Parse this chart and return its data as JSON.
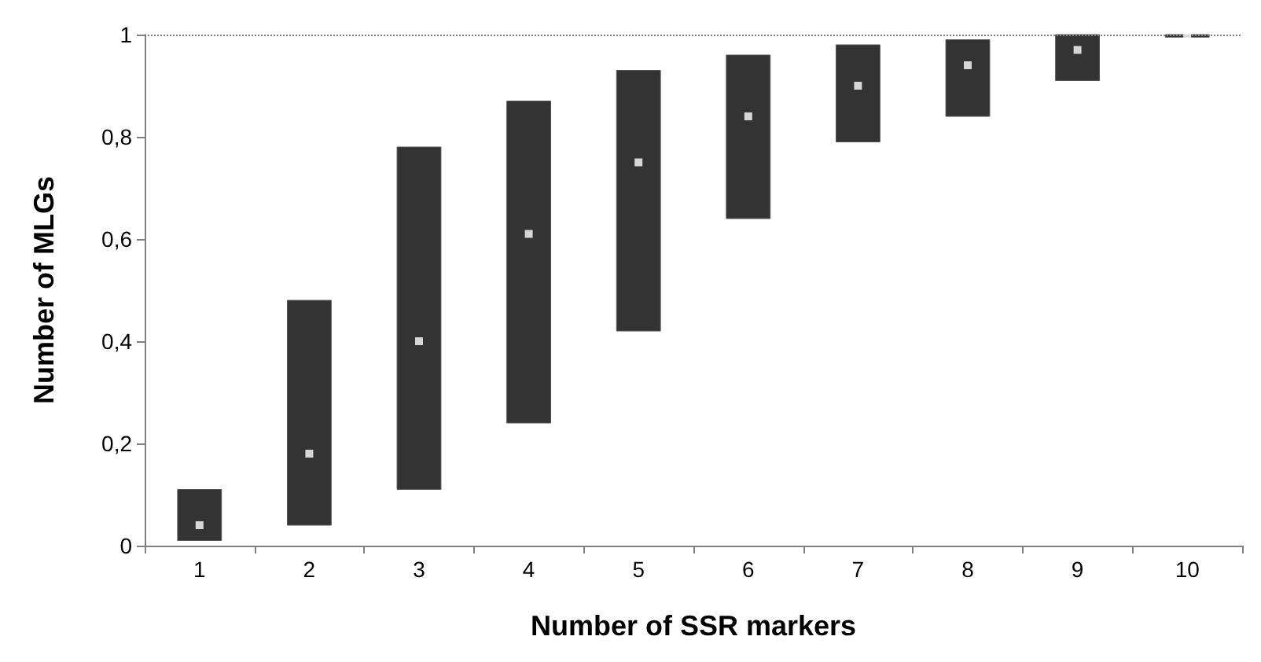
{
  "chart_data": {
    "type": "bar",
    "xlabel": "Number of SSR markers",
    "ylabel": "Number of MLGs",
    "categories": [
      "1",
      "2",
      "3",
      "4",
      "5",
      "6",
      "7",
      "8",
      "9",
      "10"
    ],
    "series": [
      {
        "color": "#333333",
        "base": [
          0.01,
          0.04,
          0.11,
          0.24,
          0.42,
          0.64,
          0.79,
          0.84,
          0.91,
          0.995
        ],
        "values": [
          0.1,
          0.44,
          0.67,
          0.63,
          0.51,
          0.32,
          0.19,
          0.15,
          0.09,
          0.005
        ]
      },
      {
        "type": "scatter",
        "color": "#ffffff",
        "x": [
          "1",
          "2",
          "3",
          "4",
          "5",
          "6",
          "7",
          "8",
          "9",
          "10"
        ],
        "values": [
          0.04,
          0.18,
          0.4,
          0.61,
          0.75,
          0.84,
          0.9,
          0.94,
          0.97,
          1.0
        ]
      }
    ],
    "marker": "square",
    "ylim": [
      0,
      1
    ],
    "yticks": [
      0,
      {
        "value": 0.2,
        "label": "0,2"
      },
      {
        "value": 0.4,
        "label": "0,4"
      },
      {
        "value": 0.6,
        "label": "0,6"
      },
      {
        "value": 0.8,
        "label": "0,8"
      },
      1
    ],
    "ref_lines": [
      {
        "axis": "y",
        "value": 1,
        "label": null,
        "color": "#808080",
        "line_style": "dotted"
      }
    ],
    "grid": false
  }
}
